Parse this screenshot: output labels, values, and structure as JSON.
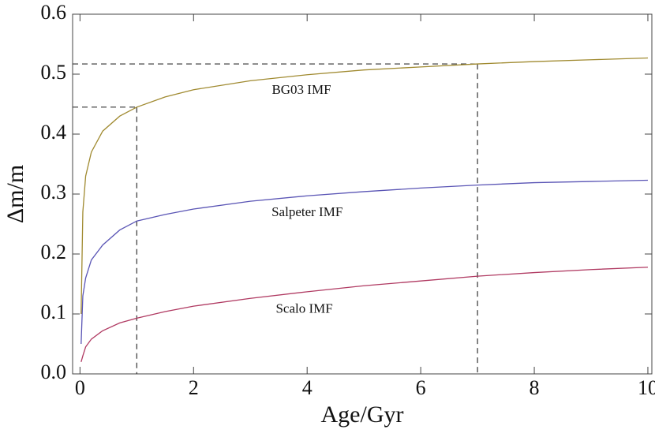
{
  "chart_data": {
    "type": "line",
    "x_label": "Age/Gyr",
    "y_label": "Δm/m",
    "xlim": [
      -0.13,
      10.07
    ],
    "ylim": [
      0,
      0.6
    ],
    "xticks": [
      0,
      2,
      4,
      6,
      8,
      10
    ],
    "yticks": [
      {
        "value": 0,
        "label": "0.0"
      },
      0.1,
      0.2,
      0.3,
      0.4,
      0.5,
      0.6
    ],
    "series": [
      {
        "name": "BG03 IMF",
        "color": "#a08a30",
        "label_at": [
          3.9,
          0.472
        ],
        "x": [
          0.02,
          0.05,
          0.1,
          0.2,
          0.4,
          0.7,
          1,
          1.5,
          2,
          3,
          4,
          5,
          6,
          7,
          8,
          9,
          10
        ],
        "values": [
          0.1,
          0.27,
          0.33,
          0.37,
          0.405,
          0.43,
          0.445,
          0.462,
          0.474,
          0.489,
          0.499,
          0.507,
          0.512,
          0.517,
          0.521,
          0.524,
          0.527
        ]
      },
      {
        "name": "Salpeter IMF",
        "color": "#5a55b5",
        "label_at": [
          4.0,
          0.268
        ],
        "x": [
          0.02,
          0.05,
          0.1,
          0.2,
          0.4,
          0.7,
          1,
          1.5,
          2,
          3,
          4,
          5,
          6,
          7,
          8,
          9,
          10
        ],
        "values": [
          0.05,
          0.13,
          0.16,
          0.19,
          0.215,
          0.24,
          0.255,
          0.266,
          0.275,
          0.288,
          0.297,
          0.304,
          0.31,
          0.315,
          0.319,
          0.321,
          0.323
        ]
      },
      {
        "name": "Scalo IMF",
        "color": "#b03a62",
        "label_at": [
          3.95,
          0.107
        ],
        "x": [
          0.02,
          0.05,
          0.1,
          0.2,
          0.4,
          0.7,
          1,
          1.5,
          2,
          3,
          4,
          5,
          6,
          7,
          8,
          9,
          10
        ],
        "values": [
          0.02,
          0.03,
          0.045,
          0.058,
          0.072,
          0.085,
          0.093,
          0.104,
          0.113,
          0.126,
          0.137,
          0.147,
          0.155,
          0.163,
          0.169,
          0.174,
          0.178
        ]
      }
    ],
    "guides": [
      {
        "x": 1,
        "y": 0.445
      },
      {
        "x": 7,
        "y": 0.517
      }
    ]
  }
}
